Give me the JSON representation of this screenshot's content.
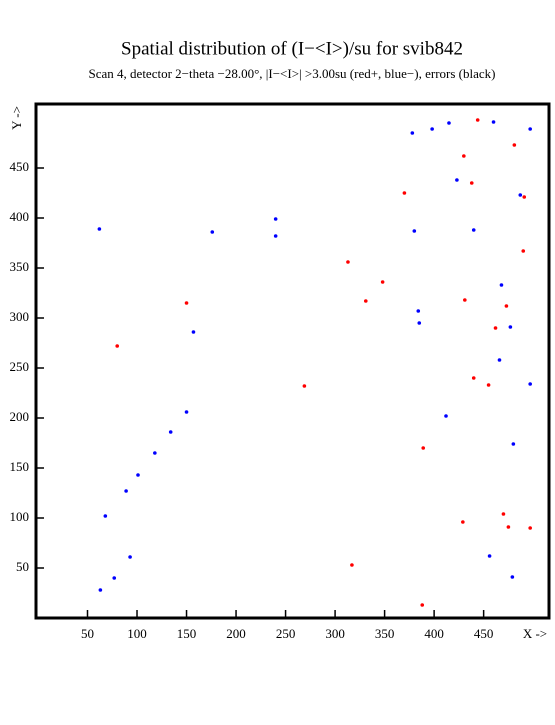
{
  "chart_data": {
    "type": "scatter",
    "title": "Spatial distribution of (I−<I>)/su for svib842",
    "subtitle": "Scan  4, detector 2−theta −28.00°, |I−<I>| >3.00su (red+, blue−), errors (black)",
    "xlabel": "X ->",
    "ylabel": "Y ->",
    "xlim": [
      -2,
      516
    ],
    "ylim": [
      0,
      514
    ],
    "xticks": [
      50,
      100,
      150,
      200,
      250,
      300,
      350,
      400,
      450
    ],
    "yticks": [
      50,
      100,
      150,
      200,
      250,
      300,
      350,
      400,
      450
    ],
    "series": [
      {
        "color": "#0000ff",
        "x": [
          63,
          77,
          93,
          68,
          89,
          101,
          118,
          134,
          150,
          157,
          62,
          176,
          240,
          240,
          378,
          398,
          415,
          460,
          497,
          423,
          487,
          380,
          440,
          468,
          384,
          385,
          477,
          466,
          497,
          412,
          480,
          456,
          479
        ],
        "y": [
          28,
          40,
          61,
          102,
          127,
          143,
          165,
          186,
          206,
          286,
          389,
          386,
          399,
          382,
          485,
          489,
          495,
          496,
          489,
          438,
          423,
          387,
          388,
          333,
          307,
          295,
          291,
          258,
          234,
          202,
          174,
          62,
          41
        ]
      },
      {
        "color": "#ff0000",
        "x": [
          444,
          481,
          430,
          438,
          370,
          491,
          490,
          313,
          348,
          331,
          150,
          431,
          473,
          462,
          80,
          269,
          440,
          455,
          389,
          470,
          429,
          475,
          497,
          317,
          388
        ],
        "y": [
          498,
          473,
          462,
          435,
          425,
          421,
          367,
          356,
          336,
          317,
          315,
          318,
          312,
          290,
          272,
          232,
          240,
          233,
          170,
          104,
          96,
          91,
          90,
          53,
          13
        ]
      }
    ]
  }
}
